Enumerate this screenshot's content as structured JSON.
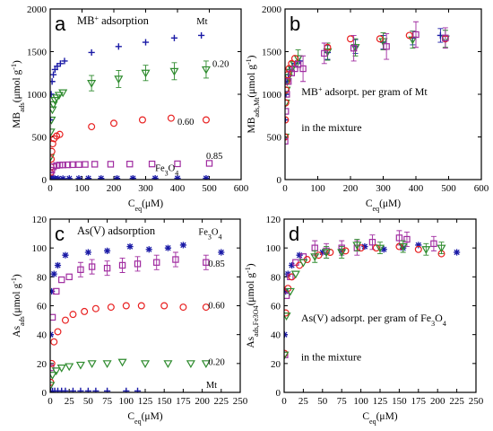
{
  "chart_data": [
    {
      "type": "scatter",
      "panel_label": "a",
      "title": "MB+ adsorption",
      "title_parts": {
        "main": "MB",
        "sup": "+",
        "rest": " adsorption"
      },
      "xlabel": {
        "main": "C",
        "sub": "eq",
        "unit": "(μM)"
      },
      "ylabel": {
        "main": "MB",
        "sub": "ads",
        "unit": "(μmol g",
        "sup": "-1",
        "close": ")"
      },
      "xlim": [
        0,
        600
      ],
      "ylim": [
        0,
        2000
      ],
      "xticks": [
        "0",
        "100",
        "200",
        "300",
        "400",
        "500",
        "600"
      ],
      "yticks": [
        "0",
        "500",
        "1000",
        "1500",
        "2000"
      ],
      "series": [
        {
          "name": "Mt",
          "marker": "plus",
          "color": "#1a1aa6",
          "x": [
            1,
            3,
            6,
            10,
            15,
            22,
            32,
            45,
            130,
            215,
            300,
            390,
            475
          ],
          "y": [
            700,
            1000,
            1150,
            1230,
            1290,
            1330,
            1360,
            1390,
            1490,
            1560,
            1610,
            1660,
            1690
          ]
        },
        {
          "name": "0.20",
          "marker": "triangle-down",
          "color": "#2e8b2e",
          "x": [
            0,
            2,
            4,
            7,
            10,
            15,
            20,
            28,
            40,
            130,
            215,
            300,
            390,
            490
          ],
          "y": [
            260,
            560,
            700,
            820,
            880,
            930,
            960,
            990,
            1020,
            1130,
            1180,
            1250,
            1270,
            1290
          ],
          "err": [
            0,
            0,
            0,
            0,
            0,
            0,
            0,
            0,
            0,
            90,
            100,
            90,
            100,
            100
          ]
        },
        {
          "name": "0.60",
          "marker": "circle",
          "color": "#e82020",
          "x": [
            0,
            1,
            2,
            3,
            5,
            8,
            12,
            20,
            30,
            130,
            200,
            290,
            380,
            490
          ],
          "y": [
            20,
            80,
            150,
            240,
            330,
            420,
            480,
            510,
            530,
            620,
            660,
            700,
            720,
            700
          ]
        },
        {
          "name": "0.85",
          "marker": "square",
          "color": "#a02ca0",
          "x": [
            0,
            2,
            5,
            10,
            20,
            30,
            40,
            55,
            70,
            90,
            110,
            140,
            190,
            250,
            320,
            400,
            500
          ],
          "y": [
            10,
            60,
            110,
            150,
            165,
            170,
            172,
            173,
            175,
            176,
            178,
            180,
            180,
            182,
            183,
            185,
            190
          ]
        },
        {
          "name": "Fe3O4",
          "marker": "asterisk",
          "color": "#1a1aa6",
          "x": [
            0,
            5,
            10,
            15,
            25,
            40,
            60,
            90,
            120,
            160,
            210,
            260,
            330,
            400,
            490
          ],
          "y": [
            5,
            8,
            10,
            12,
            12,
            12,
            13,
            13,
            14,
            14,
            14,
            15,
            15,
            15,
            15
          ]
        }
      ],
      "annotations": [
        {
          "text": "Mt",
          "x": 460,
          "y": 1820
        },
        {
          "text": "0.20",
          "x": 510,
          "y": 1320
        },
        {
          "text": "0.60",
          "x": 400,
          "y": 640
        },
        {
          "text": "0.85",
          "x": 490,
          "y": 240
        },
        {
          "text": "Fe3O4",
          "parts": [
            "Fe",
            "3",
            "O",
            "4"
          ],
          "x": 330,
          "y": 100
        }
      ]
    },
    {
      "type": "scatter",
      "panel_label": "b",
      "xlabel": {
        "main": "C",
        "sub": "eq",
        "unit": "(μM)"
      },
      "ylabel": {
        "main": "MB",
        "sub": "ads,Mt",
        "unit": "(μmol g",
        "sup": "-1",
        "close": ")"
      },
      "xlim": [
        0,
        600
      ],
      "ylim": [
        0,
        2000
      ],
      "xticks": [
        "0",
        "100",
        "200",
        "300",
        "400",
        "500",
        "600"
      ],
      "yticks": [
        "0",
        "500",
        "1000",
        "1500",
        "2000"
      ],
      "notes": [
        {
          "parts": [
            "MB",
            "+",
            " adsorpt. per gram of Mt"
          ],
          "x": 50,
          "y": 990
        },
        {
          "text": "in the mixture",
          "x": 50,
          "y": 570
        }
      ],
      "series": [
        {
          "name": "Mt",
          "marker": "plus",
          "color": "#1a1aa6",
          "x": [
            1,
            3,
            6,
            10,
            15,
            22,
            32,
            45,
            130,
            215,
            300,
            390,
            475
          ],
          "y": [
            700,
            1000,
            1150,
            1230,
            1290,
            1330,
            1360,
            1390,
            1490,
            1560,
            1610,
            1660,
            1690
          ],
          "err": [
            0,
            0,
            0,
            0,
            0,
            0,
            0,
            0,
            80,
            80,
            80,
            80,
            80
          ]
        },
        {
          "name": "0.20",
          "marker": "triangle-down",
          "color": "#2e8b2e",
          "x": [
            0,
            2,
            4,
            7,
            10,
            15,
            20,
            28,
            40,
            130,
            215,
            300,
            390,
            490
          ],
          "y": [
            500,
            900,
            1050,
            1150,
            1200,
            1260,
            1300,
            1350,
            1420,
            1500,
            1550,
            1620,
            1640,
            1650
          ],
          "err": [
            0,
            0,
            0,
            0,
            0,
            0,
            0,
            0,
            100,
            100,
            100,
            100,
            100,
            100
          ]
        },
        {
          "name": "0.60",
          "marker": "circle",
          "color": "#e82020",
          "x": [
            0,
            1,
            2,
            3,
            5,
            8,
            12,
            20,
            30,
            130,
            200,
            290,
            380,
            490
          ],
          "y": [
            500,
            700,
            900,
            1050,
            1150,
            1230,
            1300,
            1360,
            1420,
            1550,
            1650,
            1650,
            1690,
            1650
          ]
        },
        {
          "name": "0.85",
          "marker": "square",
          "color": "#a02ca0",
          "x": [
            0,
            2,
            5,
            10,
            20,
            30,
            40,
            55,
            120,
            210,
            310,
            400,
            490
          ],
          "y": [
            450,
            800,
            1000,
            1150,
            1250,
            1300,
            1350,
            1300,
            1480,
            1540,
            1560,
            1700,
            1660
          ],
          "err": [
            0,
            0,
            0,
            0,
            0,
            0,
            0,
            150,
            120,
            150,
            150,
            150,
            120
          ]
        }
      ]
    },
    {
      "type": "scatter",
      "panel_label": "c",
      "title": "As(V) adsorption",
      "xlabel": {
        "main": "C",
        "sub": "eq",
        "unit": "(μM)"
      },
      "ylabel": {
        "main": "As",
        "sub": "ads",
        "unit": "(μmol g",
        "sup": "-1",
        "close": ")"
      },
      "xlim": [
        0,
        250
      ],
      "ylim": [
        0,
        120
      ],
      "xticks": [
        "0",
        "25",
        "50",
        "75",
        "100",
        "125",
        "150",
        "175",
        "200",
        "225",
        "250"
      ],
      "yticks": [
        "0",
        "20",
        "40",
        "60",
        "80",
        "100",
        "120"
      ],
      "series": [
        {
          "name": "Fe3O4",
          "marker": "asterisk",
          "color": "#1a1aa6",
          "x": [
            0.5,
            2,
            5,
            10,
            20,
            50,
            75,
            105,
            130,
            155,
            175,
            225
          ],
          "y": [
            40,
            70,
            82,
            88,
            95,
            97,
            98,
            101,
            99,
            100,
            102,
            97
          ]
        },
        {
          "name": "0.85",
          "marker": "square",
          "color": "#a02ca0",
          "x": [
            1,
            3,
            8,
            15,
            25,
            40,
            55,
            75,
            95,
            115,
            140,
            165,
            205
          ],
          "y": [
            17,
            52,
            70,
            78,
            80,
            85,
            87,
            86,
            88,
            89,
            90,
            92,
            90
          ],
          "err": [
            0,
            0,
            0,
            0,
            0,
            5,
            5,
            5,
            5,
            5,
            5,
            5,
            5
          ]
        },
        {
          "name": "0.60",
          "marker": "circle",
          "color": "#e82020",
          "x": [
            0.5,
            2,
            5,
            10,
            20,
            30,
            45,
            60,
            80,
            100,
            120,
            150,
            175,
            205
          ],
          "y": [
            7,
            20,
            35,
            42,
            50,
            54,
            56,
            58,
            59,
            60,
            60,
            60,
            59,
            59
          ]
        },
        {
          "name": "0.20",
          "marker": "triangle-down",
          "color": "#2e8b2e",
          "x": [
            0.5,
            3,
            8,
            15,
            25,
            40,
            55,
            75,
            95,
            125,
            155,
            185,
            205
          ],
          "y": [
            5,
            12,
            15,
            17,
            18,
            19,
            20,
            20,
            21,
            20,
            20,
            20,
            20
          ]
        },
        {
          "name": "Mt",
          "marker": "plus",
          "color": "#1a1aa6",
          "x": [
            0.5,
            3,
            6,
            10,
            15,
            20,
            30,
            40,
            50,
            60,
            75,
            100,
            115
          ],
          "y": [
            0.5,
            1,
            1,
            1,
            1,
            1,
            1,
            1,
            1,
            1,
            1,
            1,
            1
          ]
        }
      ],
      "annotations": [
        {
          "text": "Fe3O4",
          "parts": [
            "Fe",
            "3",
            "O",
            "4"
          ],
          "x": 195,
          "y": 109
        },
        {
          "text": "0.85",
          "x": 208,
          "y": 87
        },
        {
          "text": "0.60",
          "x": 208,
          "y": 58
        },
        {
          "text": "0.20",
          "x": 208,
          "y": 19
        },
        {
          "text": "Mt",
          "x": 205,
          "y": 3
        }
      ]
    },
    {
      "type": "scatter",
      "panel_label": "d",
      "xlabel": {
        "main": "C",
        "sub": "eq",
        "unit": "(μM)"
      },
      "ylabel": {
        "main": "As",
        "sub": "ads,Fe3O4",
        "unit": "(μmol g",
        "sup": "-1",
        "close": ")"
      },
      "xlim": [
        0,
        250
      ],
      "ylim": [
        0,
        120
      ],
      "xticks": [
        "0",
        "25",
        "50",
        "75",
        "100",
        "125",
        "150",
        "175",
        "200",
        "225",
        "250"
      ],
      "yticks": [
        "0",
        "20",
        "40",
        "60",
        "80",
        "100",
        "120"
      ],
      "notes": [
        {
          "parts": [
            "As(V) adsorpt. per gram of Fe",
            "3",
            "O",
            "4"
          ],
          "x": 22,
          "y": 49
        },
        {
          "text": "in the mixture",
          "x": 22,
          "y": 22
        }
      ],
      "series": [
        {
          "name": "Fe3O4",
          "marker": "asterisk",
          "color": "#1a1aa6",
          "x": [
            0.5,
            2,
            5,
            10,
            20,
            50,
            75,
            105,
            130,
            155,
            175,
            225
          ],
          "y": [
            40,
            70,
            82,
            88,
            95,
            97,
            98,
            101,
            99,
            100,
            102,
            97
          ]
        },
        {
          "name": "0.85",
          "marker": "square",
          "color": "#a02ca0",
          "x": [
            1,
            3,
            8,
            15,
            25,
            40,
            55,
            75,
            95,
            115,
            150,
            160,
            195
          ],
          "y": [
            26,
            67,
            80,
            90,
            94,
            100,
            98,
            100,
            100,
            104,
            107,
            106,
            103
          ],
          "err": [
            0,
            0,
            0,
            0,
            0,
            5,
            5,
            5,
            5,
            5,
            5,
            5,
            5
          ]
        },
        {
          "name": "0.60",
          "marker": "circle",
          "color": "#e82020",
          "x": [
            0.5,
            2,
            5,
            10,
            20,
            30,
            45,
            60,
            80,
            100,
            120,
            150,
            175,
            205
          ],
          "y": [
            27,
            55,
            72,
            80,
            88,
            92,
            95,
            97,
            98,
            100,
            100,
            101,
            99,
            96
          ]
        },
        {
          "name": "0.20",
          "marker": "triangle-down",
          "color": "#2e8b2e",
          "x": [
            0.5,
            3,
            8,
            15,
            25,
            40,
            55,
            75,
            95,
            125,
            155,
            185,
            205
          ],
          "y": [
            26,
            53,
            70,
            82,
            90,
            94,
            97,
            97,
            102,
            100,
            101,
            99,
            100
          ],
          "err": [
            0,
            0,
            0,
            0,
            0,
            4,
            4,
            4,
            4,
            4,
            4,
            4,
            4
          ]
        }
      ]
    }
  ]
}
